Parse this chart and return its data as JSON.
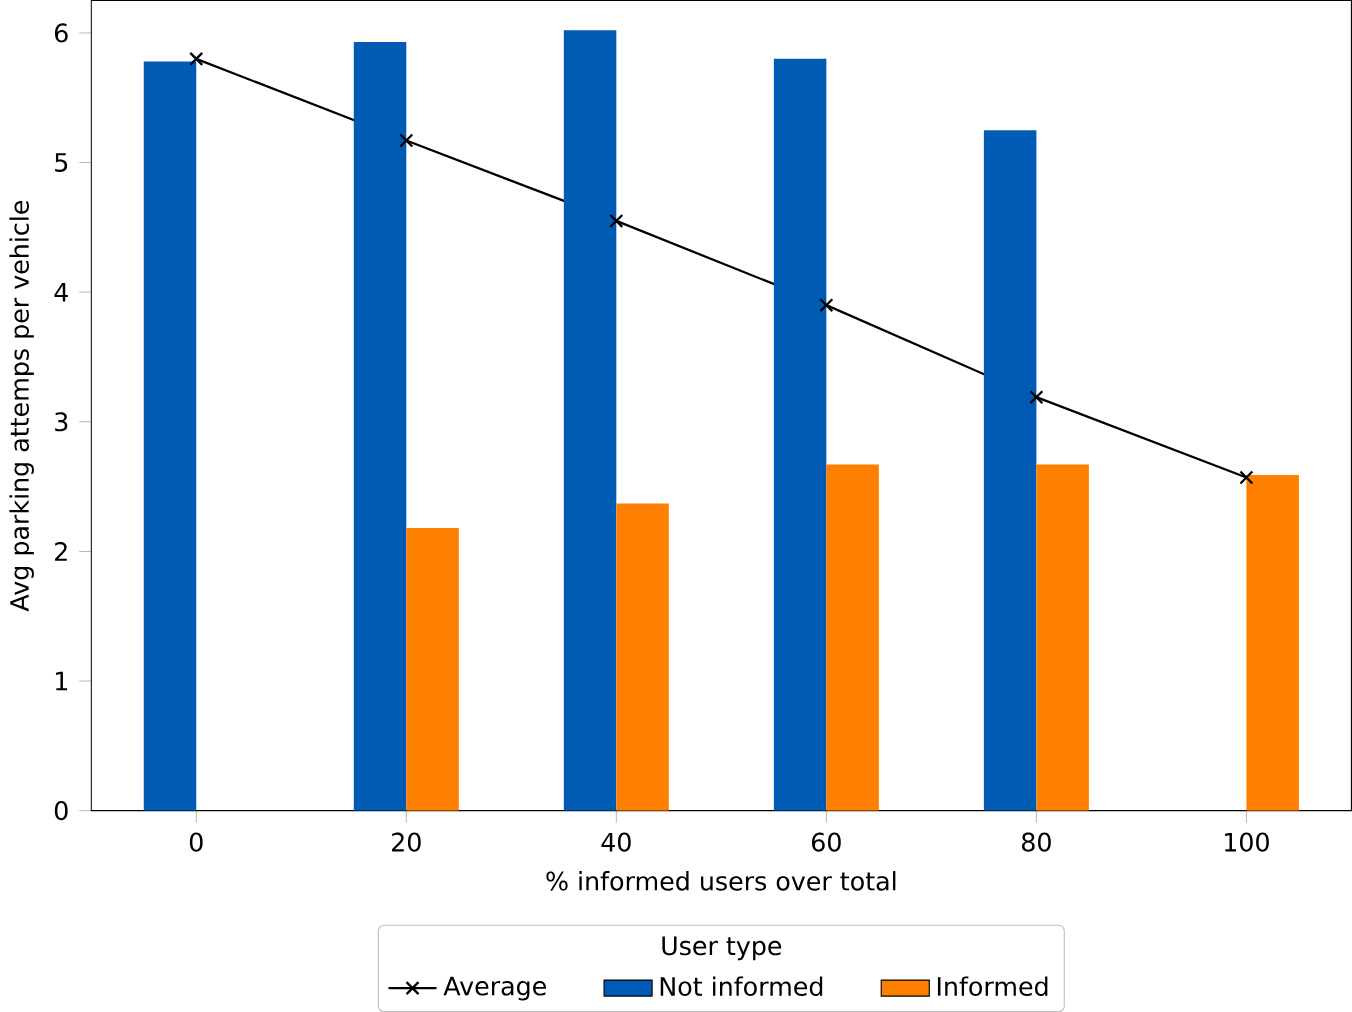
{
  "chart_data": {
    "type": "bar",
    "xlabel": "% informed users over total",
    "ylabel": "Avg parking attemps per vehicle",
    "legend_title": "User type",
    "legend": "bottom",
    "x": [
      0,
      20,
      40,
      60,
      80,
      100
    ],
    "xlim": [
      -10,
      110
    ],
    "xticks": [
      0,
      20,
      40,
      60,
      80,
      100
    ],
    "ylim": [
      0,
      6.25
    ],
    "yticks": [
      0,
      1,
      2,
      3,
      4,
      5,
      6
    ],
    "series": [
      {
        "name": "Average",
        "type": "line",
        "color": "#000000",
        "marker": "cross",
        "values": [
          5.8,
          5.17,
          4.55,
          3.9,
          3.19,
          2.57
        ]
      },
      {
        "name": "Not informed",
        "color": "#005bb5",
        "values": [
          5.78,
          5.93,
          6.02,
          5.8,
          5.25,
          null
        ]
      },
      {
        "name": "Informed",
        "color": "#ff7f00",
        "values": [
          null,
          2.18,
          2.37,
          2.67,
          2.67,
          2.59
        ]
      }
    ]
  }
}
